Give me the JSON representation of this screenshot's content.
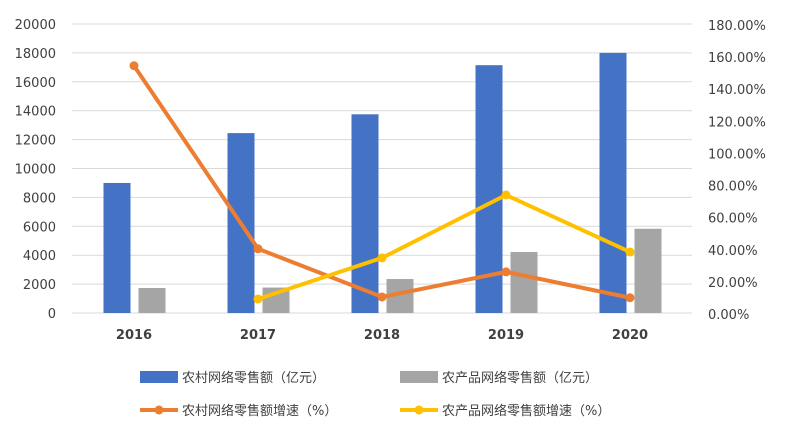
{
  "chart_data": {
    "type": "bar",
    "categories": [
      "2016",
      "2017",
      "2018",
      "2019",
      "2020"
    ],
    "y_left": {
      "ylim": [
        0,
        20000
      ],
      "ticks": [
        "0",
        "2000",
        "4000",
        "6000",
        "8000",
        "10000",
        "12000",
        "14000",
        "16000",
        "18000",
        "20000"
      ]
    },
    "y_right": {
      "ylim": [
        0,
        180
      ],
      "ticks": [
        "0.00%",
        "20.00%",
        "40.00%",
        "60.00%",
        "80.00%",
        "100.00%",
        "120.00%",
        "140.00%",
        "160.00%",
        "180.00%"
      ]
    },
    "grid": true,
    "legend_position": "bottom",
    "series": [
      {
        "name": "农村网络零售额（亿元）",
        "kind": "bar",
        "axis": "left",
        "color": "#4472C4",
        "values": [
          9000,
          12450,
          13750,
          17150,
          18000
        ]
      },
      {
        "name": "农产品网络零售额（亿元）",
        "kind": "bar",
        "axis": "left",
        "color": "#A5A5A5",
        "values": [
          1730,
          1760,
          2350,
          4220,
          5830
        ]
      },
      {
        "name": "农村网络零售额增速（%）",
        "kind": "line",
        "axis": "right",
        "color": "#ED7D31",
        "values": [
          154,
          40,
          10,
          25.6,
          9.5
        ]
      },
      {
        "name": "农产品网络零售额增速（%）",
        "kind": "line",
        "axis": "right",
        "color": "#FFC000",
        "values": [
          null,
          8.7,
          34.3,
          73.5,
          38
        ]
      }
    ]
  }
}
